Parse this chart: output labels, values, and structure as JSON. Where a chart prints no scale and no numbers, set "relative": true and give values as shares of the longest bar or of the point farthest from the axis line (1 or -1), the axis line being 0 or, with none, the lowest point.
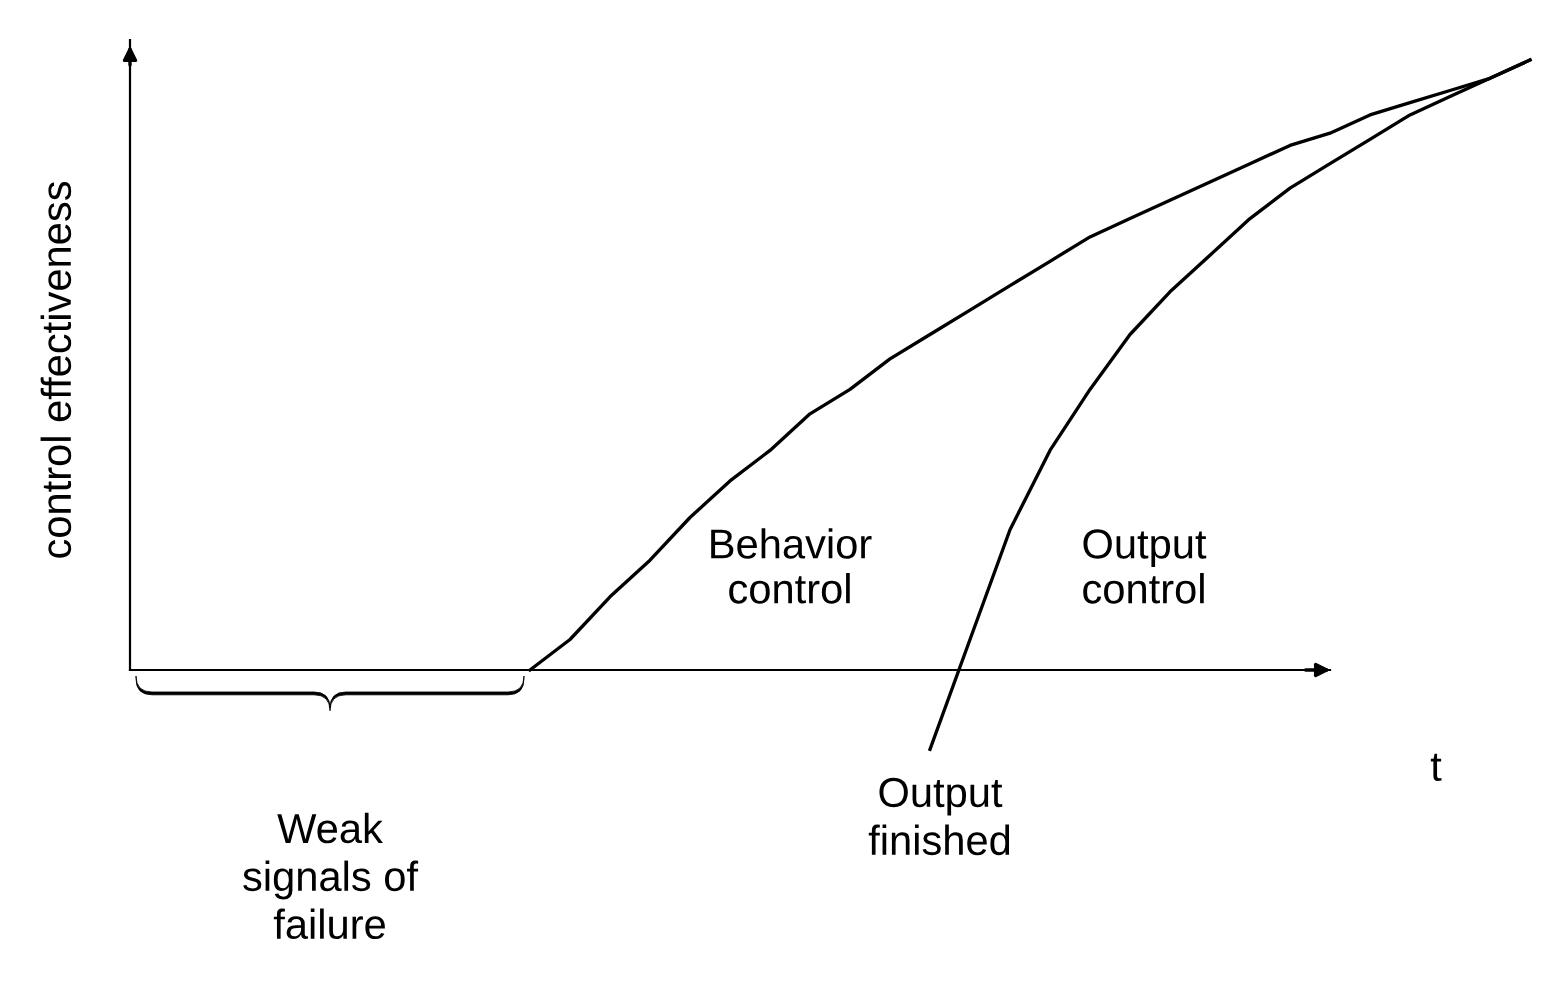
{
  "chart_data": {
    "type": "line",
    "relative": true,
    "ylabel": "control effectiveness",
    "xlabel": "t",
    "categories": [
      null,
      null,
      null,
      null,
      null,
      null,
      null,
      null,
      null,
      null,
      null,
      null,
      null,
      null,
      null,
      null,
      null,
      null,
      null,
      null,
      null,
      null,
      null,
      null,
      null,
      null,
      null,
      null,
      null,
      null,
      null,
      null,
      null,
      null,
      null,
      null
    ],
    "series": [
      {
        "name": "Behavior control",
        "color": "#000000",
        "values": [
          null,
          null,
          null,
          null,
          null,
          null,
          null,
          null,
          null,
          null,
          0,
          0.05,
          0.12,
          0.18,
          0.25,
          0.31,
          0.36,
          0.42,
          0.46,
          0.51,
          0.55,
          0.59,
          0.63,
          0.67,
          0.71,
          0.74,
          0.77,
          0.8,
          0.83,
          0.86,
          0.88,
          0.91,
          0.93,
          0.95,
          0.97,
          1
        ]
      },
      {
        "name": "Output control",
        "color": "#000000",
        "values": [
          null,
          null,
          null,
          null,
          null,
          null,
          null,
          null,
          null,
          null,
          null,
          null,
          null,
          null,
          null,
          null,
          null,
          null,
          null,
          null,
          -0.13,
          0.05,
          0.23,
          0.36,
          0.46,
          0.55,
          0.62,
          0.68,
          0.74,
          0.79,
          0.83,
          0.87,
          0.91,
          0.94,
          0.97,
          1
        ]
      }
    ],
    "annotations": [
      "Weak signals of failure",
      "Output finished"
    ],
    "legend": false,
    "marker": "none",
    "line_style": "solid"
  }
}
